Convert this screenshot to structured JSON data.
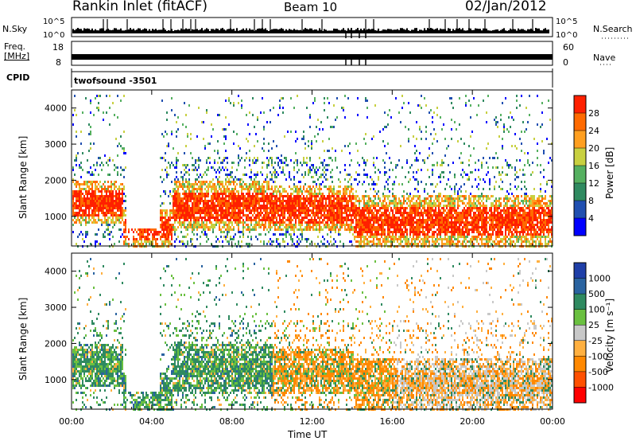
{
  "header": {
    "station": "Rankin Inlet (fitACF)",
    "beam": "Beam 10",
    "date": "02/Jan/2012"
  },
  "top_panels": {
    "nsky_label": "N.Sky",
    "nsearch_label": "N.Search",
    "count_tick_high": "10^5",
    "count_tick_low": "10^0",
    "freq_label_1": "Freq.",
    "freq_label_2": "[MHz]",
    "freq_ticks": [
      "18",
      "8"
    ],
    "nave_label": "Nave",
    "nave_ticks": [
      "60",
      "0"
    ],
    "cpid_label": "CPID",
    "cpid_value": "twofsound -3501"
  },
  "colors": {
    "power_scale": [
      "#0000ff",
      "#204fb0",
      "#2f8a60",
      "#55b060",
      "#c8d040",
      "#ff9f20",
      "#ff6a00",
      "#ff2000"
    ],
    "velocity_scale": [
      "#1f3fa8",
      "#2a63a0",
      "#2f8a60",
      "#6ac040",
      "#c8c8c8",
      "#ffb040",
      "#ff8800",
      "#ff5000",
      "#ff0000"
    ]
  },
  "chart_data": [
    {
      "type": "heatmap",
      "name_panel": "power",
      "x_ticks": [
        "00:00",
        "04:00",
        "08:00",
        "12:00",
        "16:00",
        "20:00",
        "00:00"
      ],
      "xlabel": "Time UT",
      "ylabel": "Slant Range [km]",
      "y_ticks": [
        1000,
        2000,
        3000,
        4000
      ],
      "ylim": [
        180,
        4500
      ],
      "colorbar_label": "Power [dB]",
      "colorbar_ticks": [
        "28",
        "24",
        "20",
        "16",
        "12",
        "8",
        "4"
      ],
      "colorbar_range": [
        0,
        30
      ]
    },
    {
      "type": "heatmap",
      "name_panel": "velocity",
      "x_ticks": [
        "00:00",
        "04:00",
        "08:00",
        "12:00",
        "16:00",
        "20:00",
        "00:00"
      ],
      "xlabel": "Time UT",
      "ylabel": "Slant Range [km]",
      "y_ticks": [
        1000,
        2000,
        3000,
        4000
      ],
      "ylim": [
        180,
        4500
      ],
      "colorbar_label": "Velocity [m s⁻¹]",
      "colorbar_ticks": [
        "1000",
        "500",
        "100",
        "25",
        "-25",
        "-100",
        "-500",
        "-1000"
      ]
    }
  ]
}
